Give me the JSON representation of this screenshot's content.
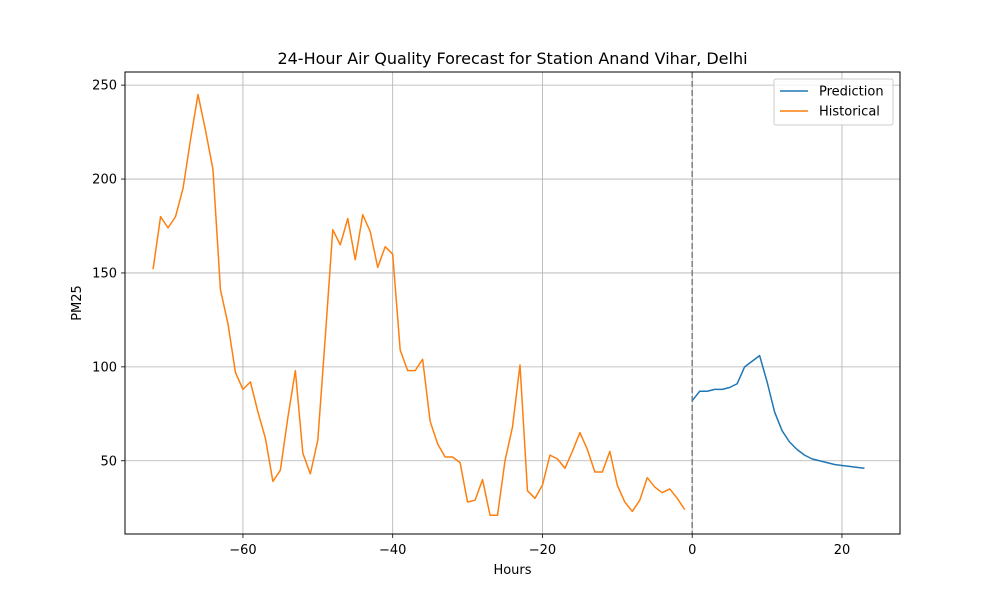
{
  "chart_data": {
    "type": "line",
    "title": "24-Hour Air Quality Forecast for Station Anand Vihar, Delhi",
    "xlabel": "Hours",
    "ylabel": "PM25",
    "xlim": [
      -75.75,
      27.75
    ],
    "ylim": [
      11,
      257
    ],
    "xticks": [
      -60,
      -40,
      -20,
      0,
      20
    ],
    "yticks": [
      50,
      100,
      150,
      200,
      250
    ],
    "grid": true,
    "legend": {
      "position": "top-right"
    },
    "vline": {
      "x": 0,
      "style": "dashed",
      "color": "#808080"
    },
    "series": [
      {
        "name": "Prediction",
        "color": "#1f77b4",
        "x": [
          0,
          1,
          2,
          3,
          4,
          5,
          6,
          7,
          8,
          9,
          10,
          11,
          12,
          13,
          14,
          15,
          16,
          17,
          18,
          19,
          20,
          21,
          22,
          23
        ],
        "y": [
          82,
          87,
          87,
          88,
          88,
          89,
          91,
          100,
          103,
          106,
          92,
          76,
          66,
          60,
          56,
          53,
          51,
          50,
          49,
          48,
          47.5,
          47,
          46.5,
          46
        ]
      },
      {
        "name": "Historical",
        "color": "#ff7f0e",
        "x": [
          -72,
          -71,
          -70,
          -69,
          -68,
          -67,
          -66,
          -65,
          -64,
          -63,
          -62,
          -61,
          -60,
          -59,
          -58,
          -57,
          -56,
          -55,
          -54,
          -53,
          -52,
          -51,
          -50,
          -49,
          -48,
          -47,
          -46,
          -45,
          -44,
          -43,
          -42,
          -41,
          -40,
          -39,
          -38,
          -37,
          -36,
          -35,
          -34,
          -33,
          -32,
          -31,
          -30,
          -29,
          -28,
          -27,
          -26,
          -25,
          -24,
          -23,
          -22,
          -21,
          -20,
          -19,
          -18,
          -17,
          -16,
          -15,
          -14,
          -13,
          -12,
          -11,
          -10,
          -9,
          -8,
          -7,
          -6,
          -5,
          -4,
          -3,
          -2,
          -1
        ],
        "y": [
          152,
          180,
          174,
          180,
          195,
          221,
          245,
          226,
          205,
          141,
          123,
          97,
          88,
          92,
          76,
          62,
          39,
          45,
          73,
          98,
          54,
          43,
          61,
          116,
          173,
          165,
          179,
          157,
          181,
          172,
          153,
          164,
          160,
          109,
          98,
          98,
          104,
          71,
          59,
          52,
          52,
          49,
          28,
          29,
          40,
          21,
          21,
          50,
          68,
          101,
          34,
          30,
          37,
          53,
          51,
          46,
          55,
          65,
          56,
          44,
          44,
          55,
          37,
          28,
          23,
          29,
          41,
          36,
          33,
          35,
          30,
          24
        ]
      }
    ]
  }
}
